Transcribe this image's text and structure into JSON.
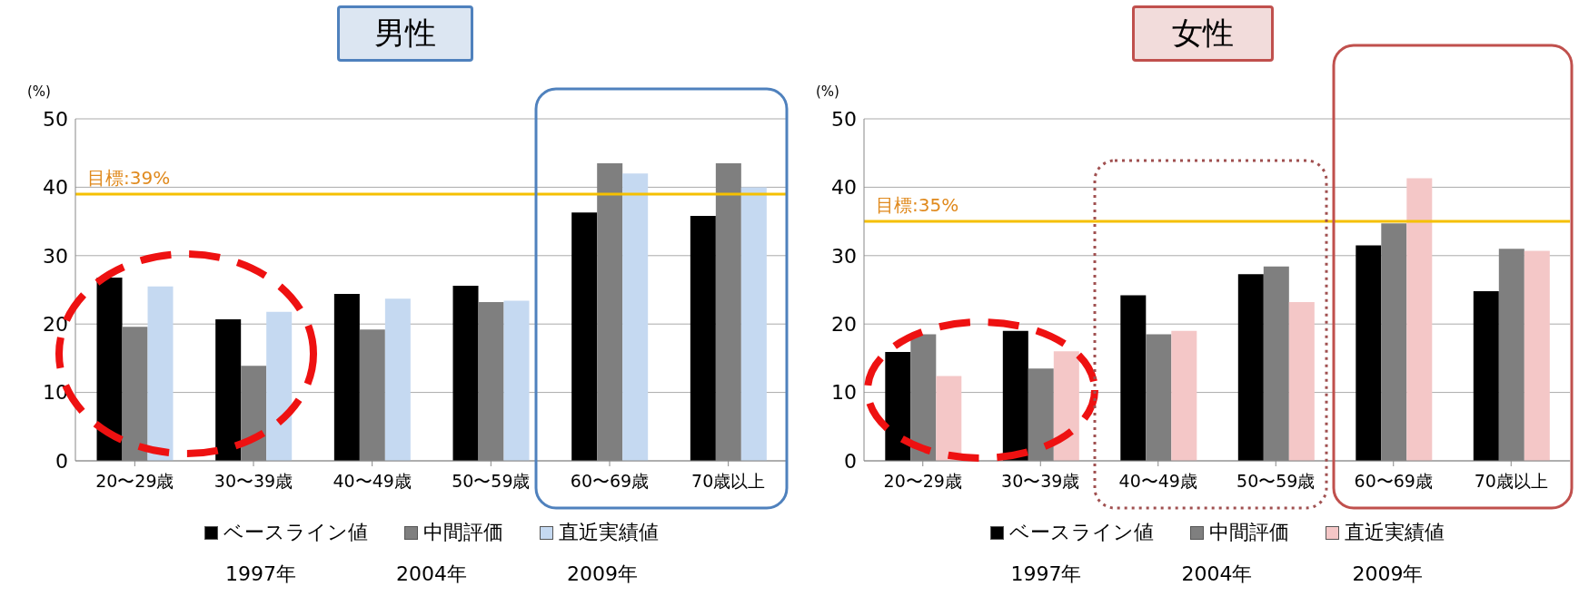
{
  "chart_data": [
    {
      "type": "bar",
      "title": "男性",
      "ylabel": "(%)",
      "categories": [
        "20〜29歳",
        "30〜39歳",
        "40〜49歳",
        "50〜59歳",
        "60〜69歳",
        "70歳以上"
      ],
      "series": [
        {
          "name": "ベースライン値",
          "color": "#000000",
          "values": [
            26.8,
            20.7,
            24.4,
            25.6,
            36.3,
            35.8
          ]
        },
        {
          "name": "中間評価",
          "color": "#7f7f7f",
          "values": [
            19.6,
            13.9,
            19.2,
            23.2,
            43.5,
            43.5
          ]
        },
        {
          "name": "直近実績値",
          "color": "#c5d9f1",
          "values": [
            25.5,
            21.8,
            23.7,
            23.4,
            42.0,
            40.0
          ]
        }
      ],
      "ylim": [
        0,
        50
      ],
      "yticks": [
        0,
        10,
        20,
        30,
        40,
        50
      ],
      "grid": "y",
      "legend": "bottom",
      "ref_lines": [
        {
          "axis": "y",
          "value": 39,
          "label": "目標:39%",
          "color": "#f5c000"
        }
      ],
      "annotations": [
        "1997年",
        "2004年",
        "2009年"
      ]
    },
    {
      "type": "bar",
      "title": "女性",
      "ylabel": "(%)",
      "categories": [
        "20〜29歳",
        "30〜39歳",
        "40〜49歳",
        "50〜59歳",
        "60〜69歳",
        "70歳以上"
      ],
      "series": [
        {
          "name": "ベースライン値",
          "color": "#000000",
          "values": [
            15.9,
            19.0,
            24.2,
            27.3,
            31.5,
            24.8
          ]
        },
        {
          "name": "中間評価",
          "color": "#7f7f7f",
          "values": [
            18.5,
            13.5,
            18.5,
            28.4,
            34.7,
            31.0
          ]
        },
        {
          "name": "直近実績値",
          "color": "#f4c7c7",
          "values": [
            12.4,
            16.0,
            19.0,
            23.2,
            41.3,
            30.7
          ]
        }
      ],
      "ylim": [
        0,
        50
      ],
      "yticks": [
        0,
        10,
        20,
        30,
        40,
        50
      ],
      "grid": "y",
      "legend": "bottom",
      "ref_lines": [
        {
          "axis": "y",
          "value": 35,
          "label": "目標:35%",
          "color": "#f5c000"
        }
      ],
      "annotations": [
        "1997年",
        "2004年",
        "2009年"
      ]
    }
  ]
}
